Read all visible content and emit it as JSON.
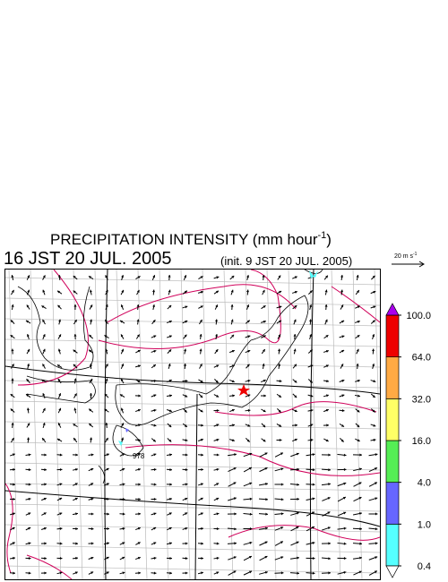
{
  "title": {
    "text": "PRECIPITATION INTENSITY (mm hour",
    "sup": "-1",
    "close": ")"
  },
  "valid_time": "16 JST 20 JUL. 2005",
  "init_time": "(init. 9 JST 20 JUL. 2005)",
  "wind_scale": {
    "text": "20 m s",
    "sup": "-1"
  },
  "isobar_label": "978",
  "colorbar": {
    "levels": [
      {
        "value": 0.4,
        "label": "0.4"
      },
      {
        "value": 1,
        "label": "1.0"
      },
      {
        "value": 4,
        "label": "4.0"
      },
      {
        "value": 16,
        "label": "16.0"
      },
      {
        "value": 32,
        "label": "32.0"
      },
      {
        "value": 64,
        "label": "64.0"
      },
      {
        "value": 100,
        "label": "100.0"
      }
    ],
    "colors": [
      "#55ffff",
      "#6666ff",
      "#55ee55",
      "#ffff66",
      "#ffaa44",
      "#ee0000"
    ],
    "over_color": "#aa00ee",
    "under_color": "#ffffff"
  }
}
